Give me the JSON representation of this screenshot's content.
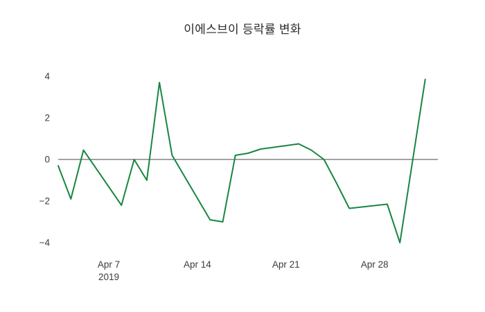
{
  "chart_data": {
    "type": "line",
    "title": "이에스브이 등락률 변화",
    "xlabel": "",
    "ylabel": "",
    "grid": false,
    "legend": "none",
    "zero_line": true,
    "line_color": "#178540",
    "zero_line_color": "#444444",
    "ylim": [
      -4.5,
      4.5
    ],
    "yticks": [
      -4,
      -2,
      0,
      2,
      4
    ],
    "xlim": [
      "2019-04-03",
      "2019-05-03"
    ],
    "xticks": [
      {
        "pos": "2019-04-07",
        "label": "Apr 7",
        "sublabel": "2019"
      },
      {
        "pos": "2019-04-14",
        "label": "Apr 14",
        "sublabel": ""
      },
      {
        "pos": "2019-04-21",
        "label": "Apr 21",
        "sublabel": ""
      },
      {
        "pos": "2019-04-28",
        "label": "Apr 28",
        "sublabel": ""
      }
    ],
    "series": [
      {
        "name": "등락률",
        "x": [
          "2019-04-03",
          "2019-04-04",
          "2019-04-05",
          "2019-04-08",
          "2019-04-09",
          "2019-04-10",
          "2019-04-11",
          "2019-04-12",
          "2019-04-15",
          "2019-04-16",
          "2019-04-17",
          "2019-04-18",
          "2019-04-19",
          "2019-04-22",
          "2019-04-23",
          "2019-04-24",
          "2019-04-25",
          "2019-04-26",
          "2019-04-29",
          "2019-04-30",
          "2019-05-02"
        ],
        "values": [
          -0.3,
          -1.9,
          0.45,
          -2.2,
          0.0,
          -1.0,
          3.7,
          0.2,
          -2.9,
          -3.0,
          0.2,
          0.3,
          0.5,
          0.75,
          0.45,
          0.0,
          -1.15,
          -2.35,
          -2.15,
          -4.0,
          3.85
        ]
      }
    ]
  }
}
